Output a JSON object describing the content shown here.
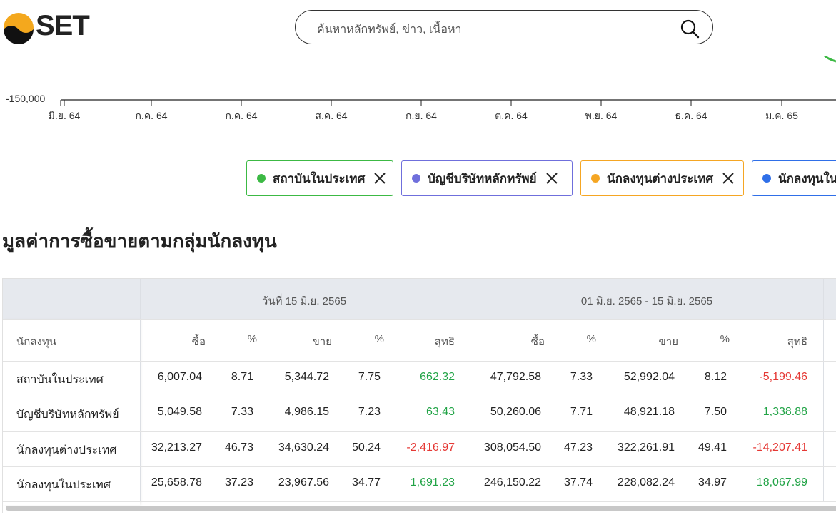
{
  "header": {
    "logo": "SET",
    "search_placeholder": "ค้นหาหลักทรัพย์, ข่าว, เนื้อหา"
  },
  "chart": {
    "y_tick_label": "-150,000",
    "x_tick_labels": [
      "มิ.ย. 64",
      "ก.ค. 64",
      "ก.ค. 64",
      "ส.ค. 64",
      "ก.ย. 64",
      "ต.ค. 64",
      "พ.ย. 64",
      "ธ.ค. 64",
      "ม.ค. 65"
    ]
  },
  "legend": [
    {
      "label": "สถาบันในประเทศ",
      "color": "#3cb944"
    },
    {
      "label": "บัญชีบริษัทหลักทรัพย์",
      "color": "#6f6fdc"
    },
    {
      "label": "นักลงทุนต่างประเทศ",
      "color": "#f5a623"
    },
    {
      "label": "นักลงทุนในประเทศ",
      "color": "#2f6fe8"
    }
  ],
  "section_title": "มูลค่าการซื้อขายตามกลุ่มนักลงทุน",
  "table": {
    "groups": [
      "วันที่ 15 มิ.ย. 2565",
      "01 มิ.ย. 2565 - 15 มิ.ย. 2565"
    ],
    "columns": [
      "นักลงทุน",
      "ซื้อ",
      "%",
      "ขาย",
      "%",
      "สุทธิ",
      "ซื้อ",
      "%",
      "ขาย",
      "%",
      "สุทธิ"
    ],
    "rows": [
      [
        "สถาบันในประเทศ",
        "6,007.04",
        "8.71",
        "5,344.72",
        "7.75",
        "662.32",
        "47,792.58",
        "7.33",
        "52,992.04",
        "8.12",
        "-5,199.46"
      ],
      [
        "บัญชีบริษัทหลักทรัพย์",
        "5,049.58",
        "7.33",
        "4,986.15",
        "7.23",
        "63.43",
        "50,260.06",
        "7.71",
        "48,921.18",
        "7.50",
        "1,338.88"
      ],
      [
        "นักลงทุนต่างประเทศ",
        "32,213.27",
        "46.73",
        "34,630.24",
        "50.24",
        "-2,416.97",
        "308,054.50",
        "47.23",
        "322,261.91",
        "49.41",
        "-14,207.41"
      ],
      [
        "นักลงทุนในประเทศ",
        "25,658.78",
        "37.23",
        "23,967.56",
        "34.77",
        "1,691.23",
        "246,150.22",
        "37.74",
        "228,082.24",
        "34.97",
        "18,067.99"
      ]
    ]
  }
}
